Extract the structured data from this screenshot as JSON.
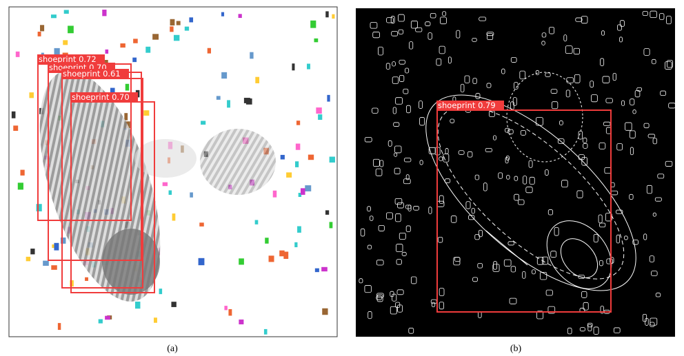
{
  "panels": [
    {
      "caption": "(a)",
      "detections": [
        {
          "label": "shoeprint 0.72"
        },
        {
          "label": "shoeprint 0.70"
        },
        {
          "label": "shoeprint 0.61"
        },
        {
          "label": "shoeprint 0.70"
        }
      ]
    },
    {
      "caption": "(b)",
      "detections": [
        {
          "label": "shoeprint 0.79"
        }
      ]
    }
  ]
}
